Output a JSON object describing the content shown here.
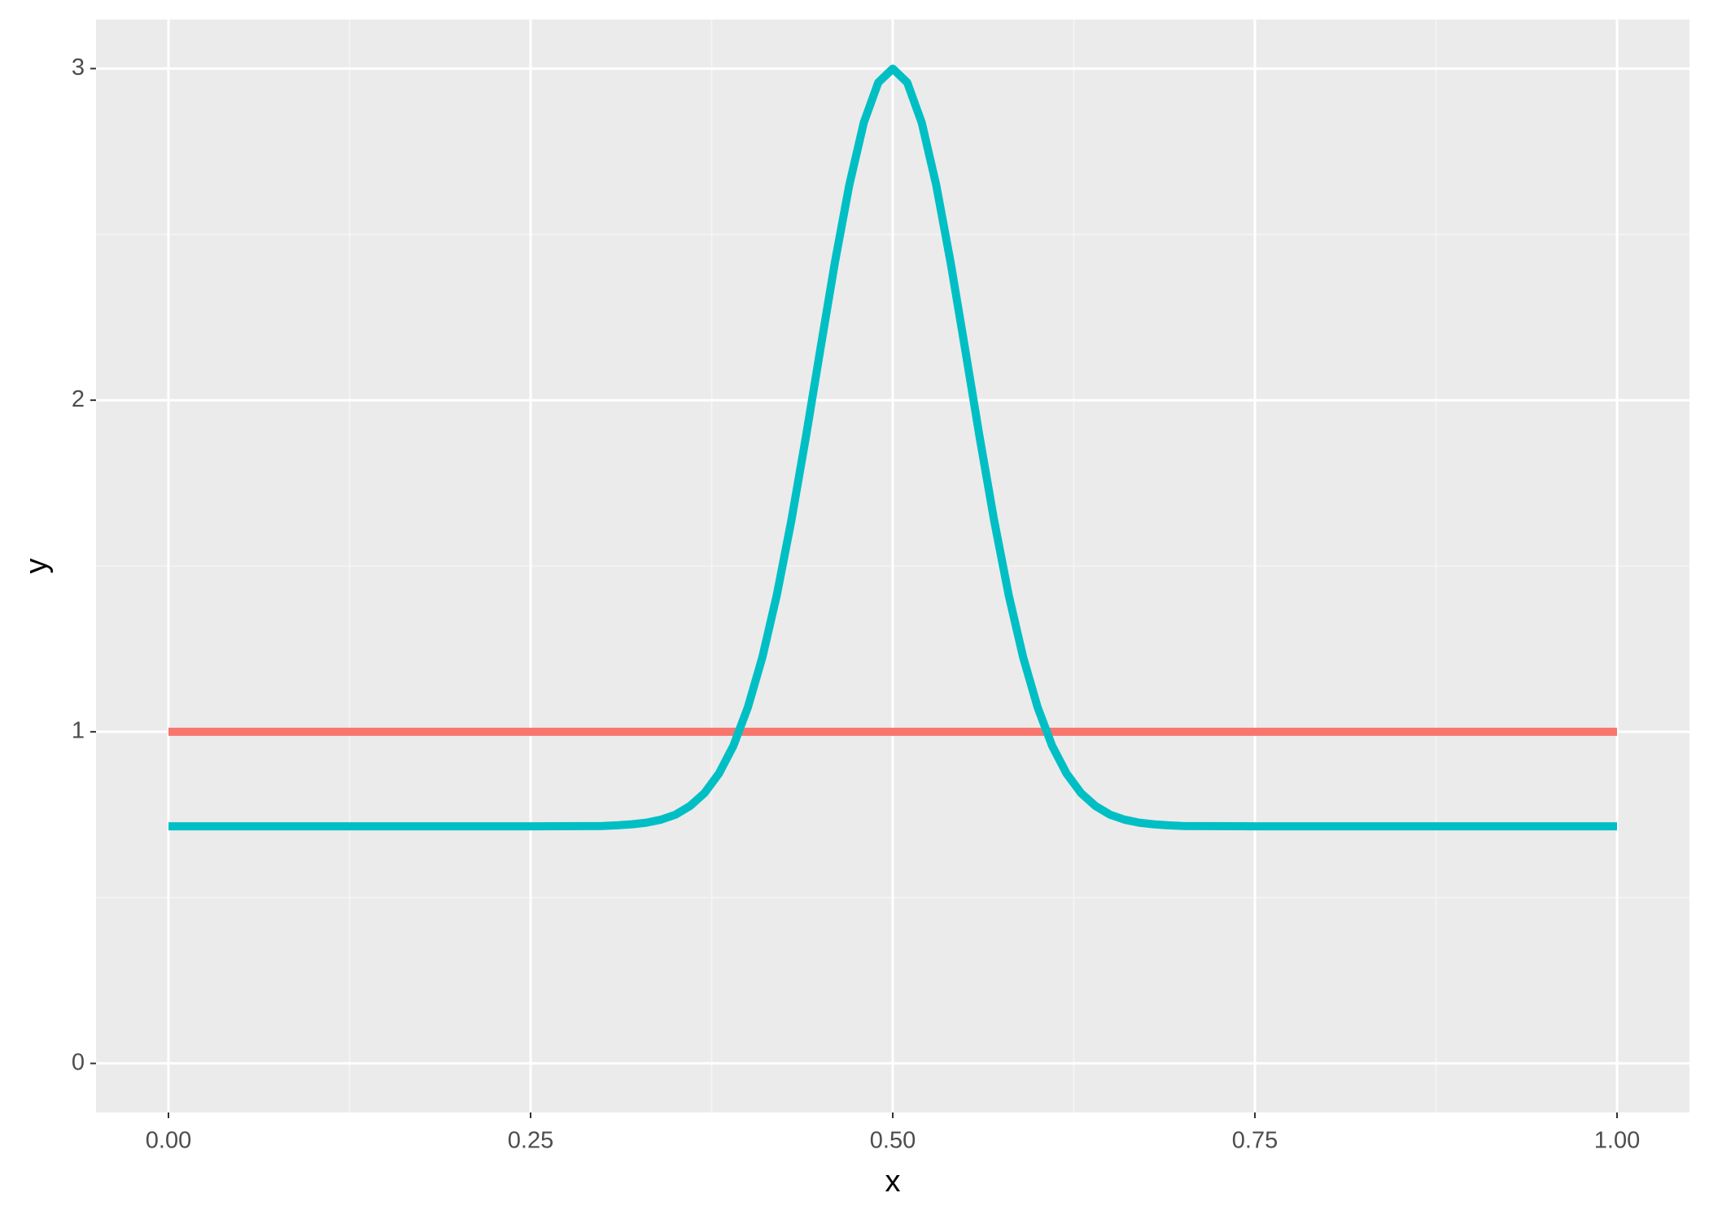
{
  "chart_data": {
    "type": "line",
    "x_label": "x",
    "y_label": "y",
    "xlim": [
      -0.05,
      1.05
    ],
    "ylim": [
      -0.148,
      3.148
    ],
    "xticks": [
      {
        "value": 0,
        "label": "0.00"
      },
      {
        "value": 0.25,
        "label": "0.25"
      },
      {
        "value": 0.5,
        "label": "0.50"
      },
      {
        "value": 0.75,
        "label": "0.75"
      },
      {
        "value": 1,
        "label": "1.00"
      }
    ],
    "yticks": [
      0,
      1,
      2,
      3
    ],
    "grid": true,
    "series": [
      {
        "color": "#F8766D",
        "x": [
          0,
          1
        ],
        "values": [
          1,
          1
        ]
      },
      {
        "color": "#00BFC4",
        "x": [
          0,
          0.05,
          0.1,
          0.15,
          0.2,
          0.25,
          0.3,
          0.31,
          0.32,
          0.33,
          0.34,
          0.35,
          0.36,
          0.37,
          0.38,
          0.39,
          0.4,
          0.41,
          0.42,
          0.43,
          0.44,
          0.45,
          0.46,
          0.47,
          0.48,
          0.49,
          0.5,
          0.51,
          0.52,
          0.53,
          0.54,
          0.55,
          0.56,
          0.57,
          0.58,
          0.59,
          0.6,
          0.61,
          0.62,
          0.63,
          0.64,
          0.65,
          0.66,
          0.67,
          0.68,
          0.69,
          0.7,
          0.75,
          0.8,
          0.85,
          0.9,
          0.95,
          1
        ],
        "values": [
          0.715,
          0.715,
          0.715,
          0.715,
          0.715,
          0.715,
          0.716,
          0.718,
          0.721,
          0.726,
          0.735,
          0.75,
          0.776,
          0.815,
          0.874,
          0.958,
          1.074,
          1.225,
          1.413,
          1.637,
          1.888,
          2.153,
          2.414,
          2.649,
          2.837,
          2.958,
          3,
          2.958,
          2.837,
          2.649,
          2.414,
          2.153,
          1.888,
          1.637,
          1.413,
          1.225,
          1.074,
          0.958,
          0.874,
          0.815,
          0.776,
          0.75,
          0.735,
          0.726,
          0.721,
          0.718,
          0.716,
          0.715,
          0.715,
          0.715,
          0.715,
          0.715,
          0.715
        ]
      }
    ]
  }
}
